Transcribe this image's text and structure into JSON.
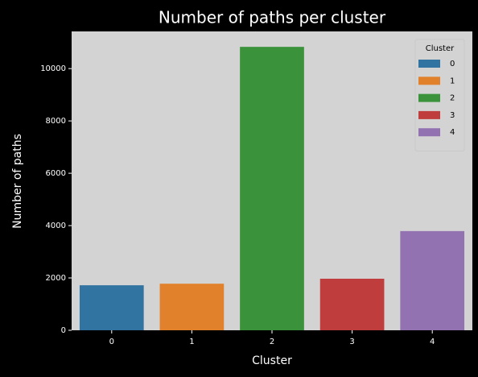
{
  "chart_data": {
    "type": "bar",
    "title": "Number of paths per cluster",
    "x_label": "Cluster",
    "y_label": "Number of paths",
    "categories": [
      "0",
      "1",
      "2",
      "3",
      "4"
    ],
    "values": [
      1720,
      1780,
      10830,
      1970,
      3790
    ],
    "colors": [
      "#3274a1",
      "#e1812c",
      "#3a923a",
      "#c03d3e",
      "#9372b2"
    ],
    "ylim": [
      0,
      11420
    ],
    "yticks": [
      0,
      2000,
      4000,
      6000,
      8000,
      10000
    ],
    "legend_title": "Cluster",
    "legend_loc": "upper right",
    "grid": false
  }
}
